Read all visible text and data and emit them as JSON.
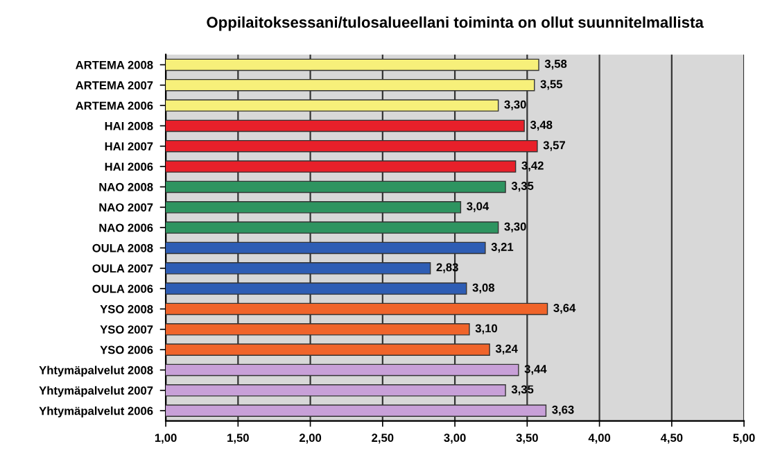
{
  "chart_data": {
    "type": "bar",
    "orientation": "horizontal",
    "title": "Oppilaitoksessani/tulosalueellani toiminta on ollut suunnitelmallista",
    "categories": [
      "ARTEMA 2008",
      "ARTEMA 2007",
      "ARTEMA 2006",
      "HAI 2008",
      "HAI 2007",
      "HAI 2006",
      "NAO 2008",
      "NAO 2007",
      "NAO 2006",
      "OULA 2008",
      "OULA 2007",
      "OULA 2006",
      "YSO 2008",
      "YSO 2007",
      "YSO 2006",
      "Yhtymäpalvelut 2008",
      "Yhtymäpalvelut 2007",
      "Yhtymäpalvelut 2006"
    ],
    "values": [
      3.58,
      3.55,
      3.3,
      3.48,
      3.57,
      3.42,
      3.35,
      3.04,
      3.3,
      3.21,
      2.83,
      3.08,
      3.64,
      3.1,
      3.24,
      3.44,
      3.35,
      3.63
    ],
    "value_labels": [
      "3,58",
      "3,55",
      "3,30",
      "3,48",
      "3,57",
      "3,42",
      "3,35",
      "3,04",
      "3,30",
      "3,21",
      "2,83",
      "3,08",
      "3,64",
      "3,10",
      "3,24",
      "3,44",
      "3,35",
      "3,63"
    ],
    "colors": [
      "#f7f07a",
      "#f7f07a",
      "#f7f07a",
      "#e8202a",
      "#e8202a",
      "#e8202a",
      "#2e9460",
      "#2e9460",
      "#2e9460",
      "#2e5db4",
      "#2e5db4",
      "#2e5db4",
      "#f0642a",
      "#f0642a",
      "#f0642a",
      "#c8a0d8",
      "#c8a0d8",
      "#c8a0d8"
    ],
    "xlim": [
      1,
      5
    ],
    "xticks": [
      {
        "value": 1,
        "label": "1,00"
      },
      {
        "value": 1.5,
        "label": "1,50"
      },
      {
        "value": 2,
        "label": "2,00"
      },
      {
        "value": 2.5,
        "label": "2,50"
      },
      {
        "value": 3,
        "label": "3,00"
      },
      {
        "value": 3.5,
        "label": "3,50"
      },
      {
        "value": 4,
        "label": "4,00"
      },
      {
        "value": 4.5,
        "label": "4,50"
      },
      {
        "value": 5,
        "label": "5,00"
      }
    ],
    "grid": "x"
  }
}
